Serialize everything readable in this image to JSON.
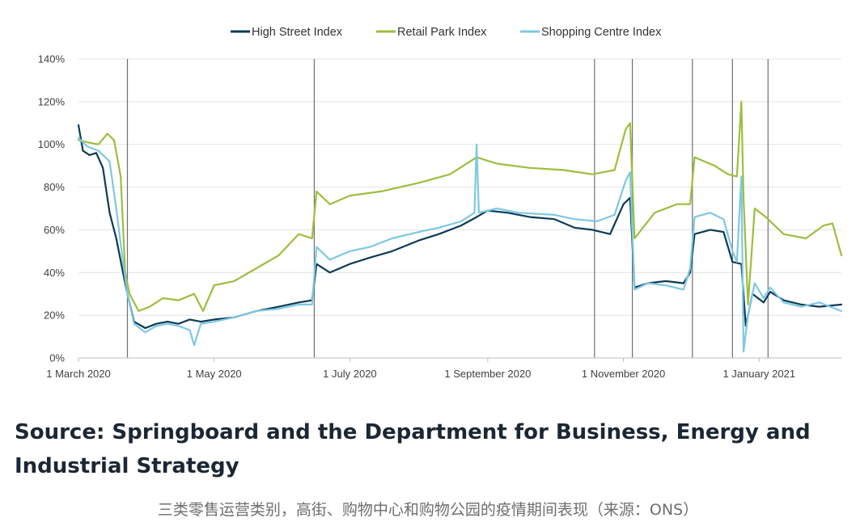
{
  "chart_data": {
    "type": "line",
    "title": "",
    "xlabel": "",
    "ylabel": "",
    "x_range": [
      "2020-03-01",
      "2021-02-07"
    ],
    "ylim": [
      0,
      140
    ],
    "y_ticks": [
      "0%",
      "20%",
      "40%",
      "60%",
      "80%",
      "100%",
      "120%",
      "140%"
    ],
    "x_ticks": [
      {
        "date": "2020-03-01",
        "label": "1 March 2020"
      },
      {
        "date": "2020-05-01",
        "label": "1 May 2020"
      },
      {
        "date": "2020-07-01",
        "label": "1 July 2020"
      },
      {
        "date": "2020-09-01",
        "label": "1 September 2020"
      },
      {
        "date": "2020-11-01",
        "label": "1 November 2020"
      },
      {
        "date": "2021-01-01",
        "label": "1 January 2021"
      }
    ],
    "grid": "horizontal",
    "legend_position": "top",
    "event_lines": [
      "2020-03-23",
      "2020-06-15",
      "2020-10-19",
      "2020-11-05",
      "2020-12-02",
      "2020-12-20",
      "2021-01-05"
    ],
    "series": [
      {
        "name": "High Street Index",
        "color": "#0d3b55",
        "points": [
          [
            "2020-03-01",
            109
          ],
          [
            "2020-03-03",
            97
          ],
          [
            "2020-03-06",
            95
          ],
          [
            "2020-03-09",
            96
          ],
          [
            "2020-03-12",
            89
          ],
          [
            "2020-03-15",
            68
          ],
          [
            "2020-03-18",
            56
          ],
          [
            "2020-03-21",
            40
          ],
          [
            "2020-03-23",
            30
          ],
          [
            "2020-03-26",
            17
          ],
          [
            "2020-03-31",
            14
          ],
          [
            "2020-04-05",
            16
          ],
          [
            "2020-04-10",
            17
          ],
          [
            "2020-04-15",
            16
          ],
          [
            "2020-04-20",
            18
          ],
          [
            "2020-04-25",
            17
          ],
          [
            "2020-05-01",
            18
          ],
          [
            "2020-05-10",
            19
          ],
          [
            "2020-05-20",
            22
          ],
          [
            "2020-05-30",
            24
          ],
          [
            "2020-06-08",
            26
          ],
          [
            "2020-06-14",
            27
          ],
          [
            "2020-06-16",
            44
          ],
          [
            "2020-06-22",
            40
          ],
          [
            "2020-07-01",
            44
          ],
          [
            "2020-07-10",
            47
          ],
          [
            "2020-07-20",
            50
          ],
          [
            "2020-08-01",
            55
          ],
          [
            "2020-08-10",
            58
          ],
          [
            "2020-08-20",
            62
          ],
          [
            "2020-08-27",
            66
          ],
          [
            "2020-09-01",
            69
          ],
          [
            "2020-09-10",
            68
          ],
          [
            "2020-09-20",
            66
          ],
          [
            "2020-10-01",
            65
          ],
          [
            "2020-10-10",
            61
          ],
          [
            "2020-10-18",
            60
          ],
          [
            "2020-10-26",
            58
          ],
          [
            "2020-11-01",
            72
          ],
          [
            "2020-11-04",
            75
          ],
          [
            "2020-11-06",
            33
          ],
          [
            "2020-11-12",
            35
          ],
          [
            "2020-11-20",
            36
          ],
          [
            "2020-11-28",
            35
          ],
          [
            "2020-12-01",
            40
          ],
          [
            "2020-12-03",
            58
          ],
          [
            "2020-12-10",
            60
          ],
          [
            "2020-12-16",
            59
          ],
          [
            "2020-12-20",
            45
          ],
          [
            "2020-12-24",
            44
          ],
          [
            "2020-12-26",
            15
          ],
          [
            "2020-12-29",
            30
          ],
          [
            "2021-01-03",
            26
          ],
          [
            "2021-01-06",
            31
          ],
          [
            "2021-01-12",
            27
          ],
          [
            "2021-01-20",
            25
          ],
          [
            "2021-01-28",
            24
          ],
          [
            "2021-02-07",
            25
          ]
        ]
      },
      {
        "name": "Retail Park Index",
        "color": "#9dbe3e",
        "points": [
          [
            "2020-03-01",
            102
          ],
          [
            "2020-03-05",
            101
          ],
          [
            "2020-03-10",
            100
          ],
          [
            "2020-03-14",
            105
          ],
          [
            "2020-03-17",
            102
          ],
          [
            "2020-03-20",
            85
          ],
          [
            "2020-03-22",
            40
          ],
          [
            "2020-03-24",
            30
          ],
          [
            "2020-03-28",
            22
          ],
          [
            "2020-04-02",
            24
          ],
          [
            "2020-04-08",
            28
          ],
          [
            "2020-04-15",
            27
          ],
          [
            "2020-04-22",
            30
          ],
          [
            "2020-04-26",
            22
          ],
          [
            "2020-05-01",
            34
          ],
          [
            "2020-05-10",
            36
          ],
          [
            "2020-05-20",
            42
          ],
          [
            "2020-05-30",
            48
          ],
          [
            "2020-06-08",
            58
          ],
          [
            "2020-06-14",
            56
          ],
          [
            "2020-06-16",
            78
          ],
          [
            "2020-06-22",
            72
          ],
          [
            "2020-07-01",
            76
          ],
          [
            "2020-07-15",
            78
          ],
          [
            "2020-08-01",
            82
          ],
          [
            "2020-08-15",
            86
          ],
          [
            "2020-08-27",
            94
          ],
          [
            "2020-09-05",
            91
          ],
          [
            "2020-09-20",
            89
          ],
          [
            "2020-10-05",
            88
          ],
          [
            "2020-10-18",
            86
          ],
          [
            "2020-10-28",
            88
          ],
          [
            "2020-11-02",
            107
          ],
          [
            "2020-11-04",
            110
          ],
          [
            "2020-11-06",
            56
          ],
          [
            "2020-11-15",
            68
          ],
          [
            "2020-11-25",
            72
          ],
          [
            "2020-12-01",
            72
          ],
          [
            "2020-12-03",
            94
          ],
          [
            "2020-12-12",
            90
          ],
          [
            "2020-12-18",
            86
          ],
          [
            "2020-12-22",
            85
          ],
          [
            "2020-12-24",
            120
          ],
          [
            "2020-12-25",
            75
          ],
          [
            "2020-12-27",
            25
          ],
          [
            "2020-12-30",
            70
          ],
          [
            "2021-01-04",
            66
          ],
          [
            "2021-01-12",
            58
          ],
          [
            "2021-01-22",
            56
          ],
          [
            "2021-01-30",
            62
          ],
          [
            "2021-02-03",
            63
          ],
          [
            "2021-02-07",
            48
          ]
        ]
      },
      {
        "name": "Shopping Centre Index",
        "color": "#7ec8e3",
        "points": [
          [
            "2020-03-01",
            103
          ],
          [
            "2020-03-05",
            99
          ],
          [
            "2020-03-10",
            97
          ],
          [
            "2020-03-15",
            92
          ],
          [
            "2020-03-18",
            70
          ],
          [
            "2020-03-21",
            45
          ],
          [
            "2020-03-23",
            30
          ],
          [
            "2020-03-26",
            16
          ],
          [
            "2020-03-31",
            12
          ],
          [
            "2020-04-05",
            15
          ],
          [
            "2020-04-10",
            16
          ],
          [
            "2020-04-15",
            15
          ],
          [
            "2020-04-20",
            13
          ],
          [
            "2020-04-22",
            6
          ],
          [
            "2020-04-25",
            16
          ],
          [
            "2020-05-01",
            17
          ],
          [
            "2020-05-10",
            19
          ],
          [
            "2020-05-20",
            22
          ],
          [
            "2020-05-30",
            23
          ],
          [
            "2020-06-08",
            25
          ],
          [
            "2020-06-14",
            25
          ],
          [
            "2020-06-16",
            52
          ],
          [
            "2020-06-22",
            46
          ],
          [
            "2020-07-01",
            50
          ],
          [
            "2020-07-10",
            52
          ],
          [
            "2020-07-20",
            56
          ],
          [
            "2020-08-01",
            59
          ],
          [
            "2020-08-10",
            61
          ],
          [
            "2020-08-20",
            64
          ],
          [
            "2020-08-26",
            68
          ],
          [
            "2020-08-27",
            100
          ],
          [
            "2020-08-28",
            68
          ],
          [
            "2020-09-05",
            70
          ],
          [
            "2020-09-15",
            68
          ],
          [
            "2020-10-01",
            67
          ],
          [
            "2020-10-10",
            65
          ],
          [
            "2020-10-20",
            64
          ],
          [
            "2020-10-28",
            67
          ],
          [
            "2020-11-02",
            83
          ],
          [
            "2020-11-04",
            87
          ],
          [
            "2020-11-06",
            32
          ],
          [
            "2020-11-12",
            35
          ],
          [
            "2020-11-20",
            34
          ],
          [
            "2020-11-28",
            32
          ],
          [
            "2020-12-01",
            42
          ],
          [
            "2020-12-03",
            66
          ],
          [
            "2020-12-10",
            68
          ],
          [
            "2020-12-16",
            65
          ],
          [
            "2020-12-20",
            50
          ],
          [
            "2020-12-22",
            45
          ],
          [
            "2020-12-24",
            85
          ],
          [
            "2020-12-25",
            3
          ],
          [
            "2020-12-27",
            20
          ],
          [
            "2020-12-30",
            35
          ],
          [
            "2021-01-03",
            28
          ],
          [
            "2021-01-06",
            33
          ],
          [
            "2021-01-12",
            26
          ],
          [
            "2021-01-20",
            24
          ],
          [
            "2021-01-28",
            26
          ],
          [
            "2021-02-07",
            22
          ]
        ]
      }
    ]
  },
  "source_text": "Source: Springboard and the Department for Business, Energy and Industrial Strategy",
  "caption_text": "三类零售运营类别，高街、购物中心和购物公园的疫情期间表现（来源：ONS）"
}
